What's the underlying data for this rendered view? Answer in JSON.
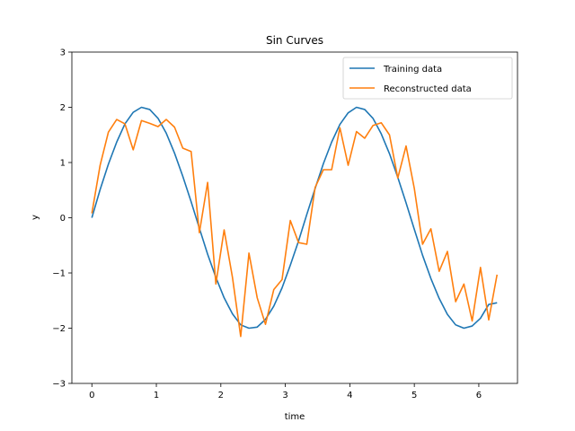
{
  "chart_data": {
    "type": "line",
    "title": "Sin Curves",
    "xlabel": "time",
    "ylabel": "y",
    "xlim": [
      -0.31,
      6.6
    ],
    "ylim": [
      -3,
      3
    ],
    "xticks": [
      0,
      1,
      2,
      3,
      4,
      5,
      6
    ],
    "yticks": [
      -3,
      -2,
      -1,
      0,
      1,
      2,
      3
    ],
    "xtick_labels": [
      "0",
      "1",
      "2",
      "3",
      "4",
      "5",
      "6"
    ],
    "ytick_labels": [
      "−3",
      "−2",
      "−1",
      "0",
      "1",
      "2",
      "3"
    ],
    "grid": false,
    "legend_position": "top-right",
    "series": [
      {
        "name": "Training data",
        "color": "#1f77b4",
        "x": [
          0,
          0.128,
          0.256,
          0.385,
          0.513,
          0.641,
          0.769,
          0.897,
          1.026,
          1.154,
          1.282,
          1.41,
          1.539,
          1.667,
          1.795,
          1.923,
          2.051,
          2.18,
          2.308,
          2.436,
          2.564,
          2.692,
          2.821,
          2.949,
          3.077,
          3.205,
          3.333,
          3.462,
          3.59,
          3.718,
          3.846,
          3.974,
          4.103,
          4.231,
          4.359,
          4.487,
          4.615,
          4.744,
          4.872,
          5.0,
          5.128,
          5.257,
          5.385,
          5.513,
          5.641,
          5.769,
          5.897,
          6.026,
          6.154,
          6.283
        ],
        "y": [
          0.0,
          0.51,
          0.97,
          1.37,
          1.7,
          1.91,
          2.0,
          1.96,
          1.8,
          1.53,
          1.17,
          0.75,
          0.29,
          -0.19,
          -0.66,
          -1.08,
          -1.45,
          -1.74,
          -1.94,
          -2.0,
          -1.98,
          -1.84,
          -1.6,
          -1.27,
          -0.86,
          -0.42,
          0.06,
          0.53,
          0.98,
          1.37,
          1.69,
          1.9,
          2.0,
          1.96,
          1.8,
          1.52,
          1.16,
          0.73,
          0.27,
          -0.21,
          -0.68,
          -1.1,
          -1.46,
          -1.75,
          -1.94,
          -2.0,
          -1.96,
          -1.82,
          -1.57,
          -1.54
        ]
      },
      {
        "name": "Reconstructed data",
        "color": "#ff7f0e",
        "x": [
          0,
          0.128,
          0.256,
          0.385,
          0.513,
          0.641,
          0.769,
          0.897,
          1.026,
          1.154,
          1.282,
          1.41,
          1.539,
          1.667,
          1.795,
          1.923,
          2.051,
          2.18,
          2.308,
          2.436,
          2.564,
          2.692,
          2.821,
          2.949,
          3.077,
          3.205,
          3.333,
          3.462,
          3.59,
          3.718,
          3.846,
          3.974,
          4.103,
          4.231,
          4.359,
          4.487,
          4.615,
          4.744,
          4.872,
          5.0,
          5.128,
          5.257,
          5.385,
          5.513,
          5.641,
          5.769,
          5.897,
          6.026,
          6.154,
          6.283
        ],
        "y": [
          0.08,
          0.95,
          1.55,
          1.78,
          1.7,
          1.23,
          1.76,
          1.71,
          1.65,
          1.78,
          1.64,
          1.26,
          1.2,
          -0.27,
          0.64,
          -1.2,
          -0.22,
          -1.08,
          -2.15,
          -0.64,
          -1.45,
          -1.93,
          -1.3,
          -1.12,
          -0.05,
          -0.45,
          -0.48,
          0.55,
          0.87,
          0.87,
          1.63,
          0.95,
          1.56,
          1.44,
          1.67,
          1.72,
          1.5,
          0.72,
          1.3,
          0.53,
          -0.48,
          -0.2,
          -0.97,
          -0.61,
          -1.52,
          -1.2,
          -1.87,
          -0.9,
          -1.85,
          -1.03
        ]
      }
    ]
  }
}
